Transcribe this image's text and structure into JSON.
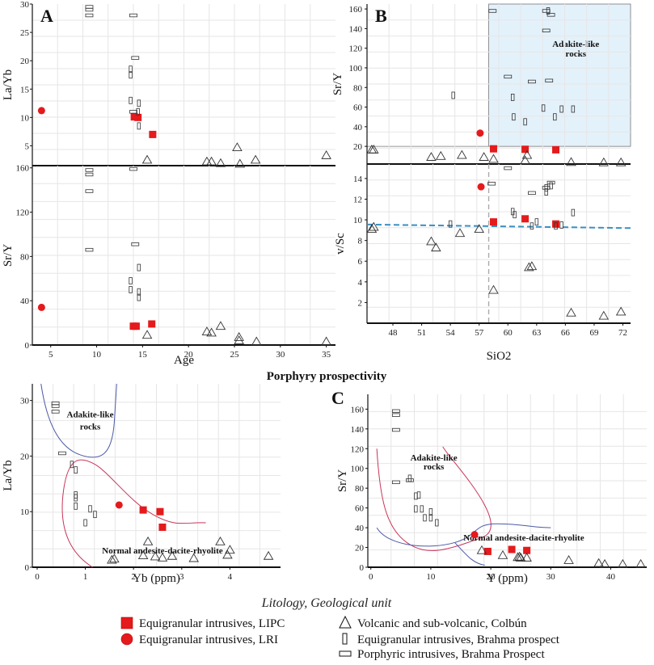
{
  "figure_title": "Porphyry prospectivity",
  "colors": {
    "lipc": "#e41a1c",
    "lri": "#e41a1c",
    "adakite_fill": "#e3f1fb",
    "adakite_curve": "#4b5aa8",
    "normal_curve": "#c9345a",
    "dashed_line": "#3a8fc0",
    "outline": "#333333"
  },
  "legend": {
    "title": "Litology, Geological unit",
    "items": [
      {
        "symbol": "square",
        "label": "Equigranular intrusives, LIPC"
      },
      {
        "symbol": "circle",
        "label": "Equigranular intrusives, LRI"
      },
      {
        "symbol": "triangle",
        "label": "Volcanic and sub-volcanic, Colbún"
      },
      {
        "symbol": "vrect",
        "label": "Equigranular intrusives, Brahma prospect"
      },
      {
        "symbol": "hrect",
        "label": "Porphyric intrusives, Brahma Prospect"
      }
    ]
  },
  "chart_data": [
    {
      "id": "A_top",
      "type": "scatter",
      "panel_label": "A",
      "xlabel": "",
      "ylabel": "La/Yb",
      "xlim": [
        3,
        36
      ],
      "ylim": [
        1.5,
        30
      ],
      "yticks": [
        5,
        10,
        15,
        20,
        25,
        30
      ],
      "xticks": [],
      "series": [
        {
          "name": "Equigranular intrusives, LIPC",
          "marker": "square",
          "points": [
            [
              14.1,
              10.1
            ],
            [
              14.5,
              10
            ],
            [
              16.1,
              7
            ]
          ]
        },
        {
          "name": "Equigranular intrusives, LRI",
          "marker": "circle",
          "points": [
            [
              4,
              11.2
            ]
          ]
        },
        {
          "name": "Volcanic and sub-volcanic, Colbún",
          "marker": "triangle",
          "points": [
            [
              15.5,
              2.5
            ],
            [
              22,
              2.2
            ],
            [
              22.5,
              2.2
            ],
            [
              23.5,
              1.9
            ],
            [
              25.3,
              4.7
            ],
            [
              25.6,
              1.8
            ],
            [
              27.3,
              2.5
            ],
            [
              35,
              3.3
            ]
          ]
        },
        {
          "name": "Equigranular intrusives, Brahma prospect",
          "marker": "vrect",
          "points": [
            [
              13.7,
              18.5
            ],
            [
              13.7,
              17.5
            ],
            [
              13.7,
              13
            ],
            [
              14.6,
              12.5
            ],
            [
              14.5,
              11
            ],
            [
              14.6,
              8.5
            ]
          ]
        },
        {
          "name": "Porphyric intrusives, Brahma Prospect",
          "marker": "hrect",
          "points": [
            [
              9.2,
              29.5
            ],
            [
              9.2,
              29
            ],
            [
              9.2,
              28
            ],
            [
              14,
              28
            ],
            [
              14.2,
              20.5
            ],
            [
              14,
              11
            ]
          ]
        }
      ]
    },
    {
      "id": "A_bottom",
      "type": "scatter",
      "xlabel": "Age",
      "ylabel": "Sr/Y",
      "xlim": [
        3,
        36
      ],
      "ylim": [
        0,
        162
      ],
      "yticks": [
        0,
        40,
        80,
        120,
        160
      ],
      "xticks": [
        5,
        10,
        15,
        20,
        25,
        30,
        35
      ],
      "series": [
        {
          "name": "Equigranular intrusives, LIPC",
          "marker": "square",
          "points": [
            [
              14,
              17
            ],
            [
              14.3,
              17
            ],
            [
              16,
              19
            ]
          ]
        },
        {
          "name": "Equigranular intrusives, LRI",
          "marker": "circle",
          "points": [
            [
              4,
              34
            ]
          ]
        },
        {
          "name": "Volcanic and sub-volcanic, Colbún",
          "marker": "triangle",
          "points": [
            [
              15.5,
              9
            ],
            [
              22,
              12
            ],
            [
              22.5,
              11
            ],
            [
              23.5,
              17
            ],
            [
              25.5,
              7
            ],
            [
              25.5,
              4
            ],
            [
              27.4,
              3
            ],
            [
              35,
              3
            ]
          ]
        },
        {
          "name": "Equigranular intrusives, Brahma prospect",
          "marker": "vrect",
          "points": [
            [
              13.7,
              58
            ],
            [
              13.7,
              50
            ],
            [
              14.6,
              70
            ],
            [
              14.6,
              48
            ],
            [
              14.6,
              43
            ]
          ]
        },
        {
          "name": "Porphyric intrusives, Brahma Prospect",
          "marker": "hrect",
          "points": [
            [
              9.2,
              158
            ],
            [
              9.2,
              154
            ],
            [
              9.2,
              139
            ],
            [
              9.2,
              86
            ],
            [
              14,
              159
            ],
            [
              14.2,
              91
            ]
          ]
        }
      ]
    },
    {
      "id": "B_top",
      "type": "scatter",
      "panel_label": "B",
      "xlabel": "",
      "ylabel": "Sr/Y",
      "xlim": [
        45.3,
        72.8
      ],
      "ylim": [
        2,
        165
      ],
      "yticks": [
        20,
        40,
        60,
        80,
        100,
        120,
        140,
        160
      ],
      "xticks": [],
      "region": {
        "label": "Adakite-like rocks",
        "x_from": 58,
        "y_from": 20
      },
      "series": [
        {
          "name": "Equigranular intrusives, LIPC",
          "marker": "square",
          "points": [
            [
              58.5,
              17.5
            ],
            [
              61.8,
              17
            ],
            [
              65,
              16.5
            ]
          ]
        },
        {
          "name": "Equigranular intrusives, LRI",
          "marker": "circle",
          "points": [
            [
              57.1,
              33.5
            ]
          ]
        },
        {
          "name": "Volcanic and sub-volcanic, Colbún",
          "marker": "triangle",
          "points": [
            [
              45.8,
              16.5
            ],
            [
              46,
              16.5
            ],
            [
              52,
              9
            ],
            [
              53,
              10
            ],
            [
              55.2,
              11
            ],
            [
              57.5,
              9
            ],
            [
              58.5,
              7
            ],
            [
              62,
              11
            ],
            [
              61.8,
              5.5
            ],
            [
              66.6,
              3.8
            ],
            [
              70,
              3.5
            ],
            [
              71.8,
              3.5
            ]
          ]
        },
        {
          "name": "Equigranular intrusives, Brahma prospect",
          "marker": "vrect",
          "points": [
            [
              54.3,
              72
            ],
            [
              60.5,
              70
            ],
            [
              60.6,
              50
            ],
            [
              61.8,
              45
            ],
            [
              63.7,
              59
            ],
            [
              64.9,
              50
            ],
            [
              65.6,
              58
            ],
            [
              66.8,
              58
            ],
            [
              64.2,
              158
            ]
          ]
        },
        {
          "name": "Porphyric intrusives, Brahma Prospect",
          "marker": "hrect",
          "points": [
            [
              58.4,
              158
            ],
            [
              64,
              158
            ],
            [
              64.5,
              154
            ],
            [
              64,
              138
            ],
            [
              60,
              91
            ],
            [
              62.5,
              86
            ],
            [
              64.3,
              87
            ]
          ]
        }
      ]
    },
    {
      "id": "B_bottom",
      "type": "scatter",
      "xlabel": "SiO2",
      "ylabel": "v/Sc",
      "xlim": [
        45.3,
        72.8
      ],
      "ylim": [
        0,
        15.4
      ],
      "yticks": [
        2,
        4,
        6,
        8,
        10,
        12,
        14
      ],
      "xticks": [
        48,
        51,
        54,
        57,
        60,
        63,
        66,
        69,
        72
      ],
      "ref_line": {
        "type": "dashed",
        "x1": 45.3,
        "y1": 9.55,
        "x2": 72.8,
        "y2": 9.2
      },
      "vline": {
        "x": 58
      },
      "series": [
        {
          "name": "Equigranular intrusives, LIPC",
          "marker": "square",
          "points": [
            [
              58.5,
              9.8
            ],
            [
              61.8,
              10.1
            ],
            [
              65,
              9.6
            ]
          ]
        },
        {
          "name": "Equigranular intrusives, LRI",
          "marker": "circle",
          "points": [
            [
              57.2,
              13.2
            ]
          ]
        },
        {
          "name": "Volcanic and sub-volcanic, Colbún",
          "marker": "triangle",
          "points": [
            [
              45.8,
              9.1
            ],
            [
              46,
              9.3
            ],
            [
              52,
              7.9
            ],
            [
              52.5,
              7.3
            ],
            [
              55,
              8.7
            ],
            [
              57,
              9.1
            ],
            [
              58.5,
              3.2
            ],
            [
              62.2,
              5.4
            ],
            [
              62.5,
              5.5
            ],
            [
              66.6,
              1
            ],
            [
              70,
              0.7
            ],
            [
              71.8,
              1.1
            ]
          ]
        },
        {
          "name": "Equigranular intrusives, Brahma prospect",
          "marker": "vrect",
          "points": [
            [
              54,
              9.6
            ],
            [
              60.5,
              10.8
            ],
            [
              60.7,
              10.5
            ],
            [
              62.5,
              9.4
            ],
            [
              64,
              13.1
            ],
            [
              64.5,
              13.3
            ],
            [
              65,
              9.4
            ],
            [
              65.6,
              9.5
            ],
            [
              66.8,
              10.7
            ],
            [
              64,
              12.7
            ],
            [
              63,
              9.8
            ]
          ]
        },
        {
          "name": "Porphyric intrusives, Brahma Prospect",
          "marker": "hrect",
          "points": [
            [
              60,
              15
            ],
            [
              58.3,
              13.5
            ],
            [
              62.5,
              12.6
            ],
            [
              64,
              13.1
            ],
            [
              64.5,
              13.6
            ]
          ]
        }
      ]
    },
    {
      "id": "Yb_plot",
      "type": "scatter",
      "xlabel": "Yb (ppm)",
      "ylabel": "La/Yb",
      "xlim": [
        -0.1,
        5.05
      ],
      "ylim": [
        0,
        33
      ],
      "yticks": [
        0,
        10,
        20,
        30
      ],
      "xticks": [
        0,
        1,
        2,
        3,
        4
      ],
      "annotations": [
        "Adakite-like rocks",
        "Normal andesite-dacite-rhyolite"
      ],
      "series": [
        {
          "name": "Equigranular intrusives, LIPC",
          "marker": "square",
          "points": [
            [
              2.2,
              10.3
            ],
            [
              2.55,
              10
            ],
            [
              2.6,
              7.2
            ]
          ]
        },
        {
          "name": "Equigranular intrusives, LRI",
          "marker": "circle",
          "points": [
            [
              1.7,
              11.2
            ]
          ]
        },
        {
          "name": "Volcanic and sub-volcanic, Colbún",
          "marker": "triangle",
          "points": [
            [
              1.55,
              1.3
            ],
            [
              1.6,
              1.5
            ],
            [
              2.2,
              2.1
            ],
            [
              2.3,
              4.6
            ],
            [
              2.45,
              1.9
            ],
            [
              2.6,
              1.7
            ],
            [
              2.8,
              2
            ],
            [
              3.25,
              1.6
            ],
            [
              3.8,
              4.6
            ],
            [
              3.95,
              2.2
            ],
            [
              4,
              3.1
            ],
            [
              4.8,
              2
            ]
          ]
        },
        {
          "name": "Equigranular intrusives, Brahma prospect",
          "marker": "vrect",
          "points": [
            [
              0.72,
              18.5
            ],
            [
              0.8,
              17.5
            ],
            [
              0.8,
              13
            ],
            [
              0.8,
              12.5
            ],
            [
              0.8,
              11
            ],
            [
              1,
              8
            ],
            [
              1.1,
              10.5
            ],
            [
              1.2,
              9.5
            ]
          ]
        },
        {
          "name": "Porphyric intrusives, Brahma Prospect",
          "marker": "hrect",
          "points": [
            [
              0.38,
              29.5
            ],
            [
              0.38,
              29
            ],
            [
              0.38,
              28
            ],
            [
              0.52,
              20.5
            ]
          ]
        }
      ]
    },
    {
      "id": "C",
      "type": "scatter",
      "panel_label": "C",
      "xlabel": "Y (ppm)",
      "ylabel": "Sr/Y",
      "xlim": [
        -0.5,
        46
      ],
      "ylim": [
        0,
        175
      ],
      "yticks": [
        0,
        20,
        40,
        60,
        80,
        100,
        120,
        140,
        160
      ],
      "xticks": [
        0,
        10,
        20,
        30,
        40
      ],
      "annotations": [
        "Adakite-like rocks",
        "Normal andesite-dacite-rhyolite"
      ],
      "series": [
        {
          "name": "Equigranular intrusives, LIPC",
          "marker": "square",
          "points": [
            [
              19.5,
              16
            ],
            [
              23.5,
              18
            ],
            [
              26,
              17
            ]
          ]
        },
        {
          "name": "Equigranular intrusives, LRI",
          "marker": "circle",
          "points": [
            [
              17.3,
              33
            ]
          ]
        },
        {
          "name": "Volcanic and sub-volcanic, Colbún",
          "marker": "triangle",
          "points": [
            [
              18.5,
              17
            ],
            [
              22,
              12
            ],
            [
              24.5,
              10
            ],
            [
              24.8,
              10.5
            ],
            [
              25,
              9.5
            ],
            [
              26,
              9.5
            ],
            [
              33,
              7
            ],
            [
              38,
              4
            ],
            [
              39,
              3
            ],
            [
              42,
              3
            ],
            [
              45,
              3
            ]
          ]
        },
        {
          "name": "Equigranular intrusives, Brahma prospect",
          "marker": "vrect",
          "points": [
            [
              6.5,
              90
            ],
            [
              7.5,
              72
            ],
            [
              8,
              73
            ],
            [
              7.5,
              59
            ],
            [
              8.5,
              59
            ],
            [
              9,
              50
            ],
            [
              10,
              50
            ],
            [
              11,
              45
            ],
            [
              10,
              56
            ]
          ]
        },
        {
          "name": "Porphyric intrusives, Brahma Prospect",
          "marker": "hrect",
          "points": [
            [
              4.2,
              158
            ],
            [
              4.2,
              154
            ],
            [
              4.2,
              139
            ],
            [
              4.2,
              86
            ],
            [
              6.5,
              88
            ]
          ]
        }
      ]
    }
  ]
}
